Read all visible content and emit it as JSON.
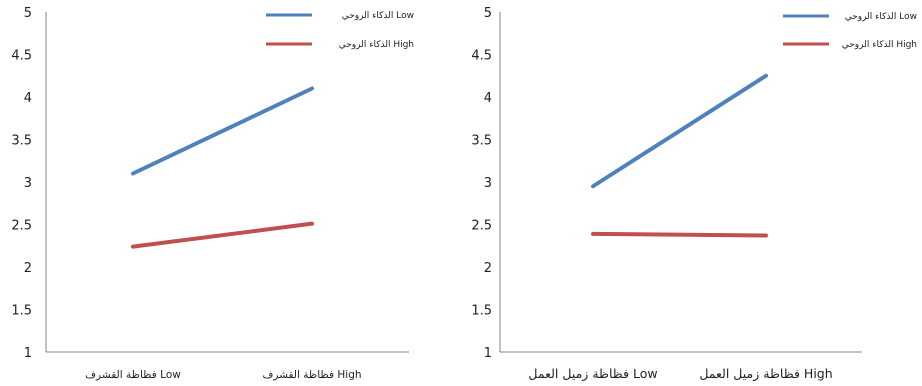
{
  "chart_data": [
    {
      "type": "line",
      "title": "",
      "xlabel": "",
      "ylabel": "",
      "categories": [
        "فظاظة  القشرف Low",
        "فظاظة  القشرف High"
      ],
      "series": [
        {
          "name": "الذكاء الروحي Low",
          "values": [
            3.1,
            4.1
          ],
          "color": "#4F81BD"
        },
        {
          "name": "الذكاء الروحي High",
          "values": [
            2.24,
            2.51
          ],
          "color": "#C0504D"
        }
      ],
      "ylim": [
        1,
        5
      ],
      "yticks": [
        "1",
        "1.5",
        "2",
        "2.5",
        "3",
        "3.5",
        "4",
        "4.5",
        "5"
      ],
      "grid": false,
      "legend": "top-right"
    },
    {
      "type": "line",
      "title": "",
      "xlabel": "",
      "ylabel": "",
      "categories": [
        "فظاظة زميل العمل Low",
        "فظاظة زميل العمل High"
      ],
      "series": [
        {
          "name": "الذكاء الروحي Low",
          "values": [
            2.95,
            4.25
          ],
          "color": "#4F81BD"
        },
        {
          "name": "الذكاء الروحي High",
          "values": [
            2.39,
            2.37
          ],
          "color": "#C0504D"
        }
      ],
      "ylim": [
        1,
        5
      ],
      "yticks": [
        "1",
        "1.5",
        "2",
        "2.5",
        "3",
        "3.5",
        "4",
        "4.5",
        "5"
      ],
      "grid": false,
      "legend": "top-right"
    }
  ]
}
